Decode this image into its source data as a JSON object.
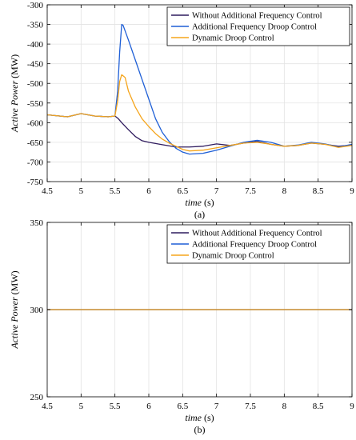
{
  "colors": {
    "without": "#2f1b5e",
    "additional": "#1f5fd6",
    "dynamic": "#f5a51c",
    "grid": "#e3e3e3",
    "axis": "#000000"
  },
  "chart_data": [
    {
      "type": "line",
      "caption": "(a)",
      "xlabel_italic": "time",
      "xlabel_unit": " (s)",
      "ylabel_italic": "Active Power",
      "ylabel_unit": " (MW)",
      "xlim": [
        4.5,
        9
      ],
      "ylim": [
        -750,
        -300
      ],
      "xticks": [
        4.5,
        5,
        5.5,
        6,
        6.5,
        7,
        7.5,
        8,
        8.5,
        9
      ],
      "yticks": [
        -300,
        -350,
        -400,
        -450,
        -500,
        -550,
        -600,
        -650,
        -700,
        -750
      ],
      "grid": true,
      "legend_position": "top-right",
      "series": [
        {
          "name": "Without Additional Frequency Control",
          "color_key": "without",
          "x": [
            4.5,
            4.8,
            5.0,
            5.2,
            5.4,
            5.5,
            5.55,
            5.6,
            5.7,
            5.8,
            5.9,
            6.0,
            6.2,
            6.4,
            6.6,
            6.8,
            7.0,
            7.2,
            7.4,
            7.6,
            7.8,
            8.0,
            8.2,
            8.4,
            8.6,
            8.8,
            9.0
          ],
          "y": [
            -580,
            -585,
            -577,
            -583,
            -585,
            -583,
            -590,
            -600,
            -618,
            -635,
            -646,
            -650,
            -656,
            -662,
            -662,
            -660,
            -654,
            -658,
            -652,
            -648,
            -655,
            -660,
            -658,
            -652,
            -655,
            -660,
            -657
          ]
        },
        {
          "name": "Additional Frequency Droop Control",
          "color_key": "additional",
          "x": [
            4.5,
            4.8,
            5.0,
            5.2,
            5.4,
            5.5,
            5.54,
            5.57,
            5.6,
            5.62,
            5.7,
            5.8,
            5.9,
            6.0,
            6.1,
            6.2,
            6.3,
            6.4,
            6.5,
            6.6,
            6.8,
            7.0,
            7.2,
            7.4,
            7.6,
            7.8,
            8.0,
            8.2,
            8.4,
            8.6,
            8.8,
            9.0
          ],
          "y": [
            -580,
            -585,
            -577,
            -583,
            -585,
            -583,
            -520,
            -420,
            -350,
            -352,
            -390,
            -440,
            -490,
            -540,
            -590,
            -625,
            -648,
            -665,
            -675,
            -680,
            -678,
            -670,
            -660,
            -650,
            -645,
            -650,
            -660,
            -657,
            -650,
            -654,
            -662,
            -655
          ]
        },
        {
          "name": "Dynamic Droop Control",
          "color_key": "dynamic",
          "x": [
            4.5,
            4.8,
            5.0,
            5.2,
            5.4,
            5.5,
            5.54,
            5.57,
            5.6,
            5.65,
            5.7,
            5.8,
            5.9,
            6.0,
            6.1,
            6.2,
            6.3,
            6.4,
            6.5,
            6.6,
            6.8,
            7.0,
            7.2,
            7.4,
            7.6,
            7.8,
            8.0,
            8.2,
            8.4,
            8.6,
            8.8,
            9.0
          ],
          "y": [
            -580,
            -585,
            -577,
            -583,
            -585,
            -583,
            -545,
            -495,
            -478,
            -485,
            -520,
            -560,
            -590,
            -610,
            -628,
            -642,
            -652,
            -660,
            -668,
            -672,
            -670,
            -664,
            -658,
            -652,
            -650,
            -655,
            -660,
            -658,
            -652,
            -655,
            -663,
            -658
          ]
        }
      ]
    },
    {
      "type": "line",
      "caption": "(b)",
      "xlabel_italic": "time",
      "xlabel_unit": " (s)",
      "ylabel_italic": "Active Power",
      "ylabel_unit": " (MW)",
      "xlim": [
        4.5,
        9
      ],
      "ylim": [
        250,
        350
      ],
      "xticks": [
        4.5,
        5,
        5.5,
        6,
        6.5,
        7,
        7.5,
        8,
        8.5,
        9
      ],
      "yticks": [
        350,
        300,
        250
      ],
      "grid": true,
      "legend_position": "top-right",
      "series": [
        {
          "name": "Without Additional Frequency Control",
          "color_key": "without",
          "x": [
            4.5,
            9.0
          ],
          "y": [
            300,
            300
          ]
        },
        {
          "name": "Additional Frequency Droop Control",
          "color_key": "additional",
          "x": [
            4.5,
            9.0
          ],
          "y": [
            300,
            300
          ]
        },
        {
          "name": "Dynamic Droop Control",
          "color_key": "dynamic",
          "x": [
            4.5,
            9.0
          ],
          "y": [
            300,
            300
          ]
        }
      ]
    }
  ]
}
